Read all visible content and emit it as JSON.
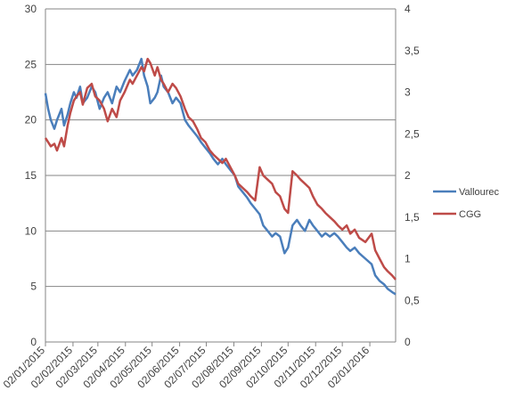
{
  "colors": {
    "vallourec": "#4a7ebb",
    "cgg": "#be4b48",
    "grid": "#868686",
    "axis": "#868686"
  },
  "chart_data": {
    "type": "line",
    "x_type": "date",
    "x_range": [
      "2015-01-02",
      "2016-01-31"
    ],
    "x_tick_labels": [
      "02/01/2015",
      "02/02/2015",
      "02/03/2015",
      "02/04/2015",
      "02/05/2015",
      "02/06/2015",
      "02/07/2015",
      "02/08/2015",
      "02/09/2015",
      "02/10/2015",
      "02/11/2015",
      "02/12/2015",
      "02/01/2016"
    ],
    "x_ticks": [
      "2015-01-02",
      "2015-02-02",
      "2015-03-02",
      "2015-04-02",
      "2015-05-02",
      "2015-06-02",
      "2015-07-02",
      "2015-08-02",
      "2015-09-02",
      "2015-10-02",
      "2015-11-02",
      "2015-12-02",
      "2016-01-02"
    ],
    "y_left": {
      "min": 0,
      "max": 30,
      "ticks": [
        "0",
        "5",
        "10",
        "15",
        "20",
        "25",
        "30"
      ]
    },
    "y_right": {
      "min": 0,
      "max": 4,
      "ticks": [
        "0",
        "0,5",
        "1",
        "1,5",
        "2",
        "2,5",
        "3",
        "3,5",
        "4"
      ]
    },
    "grid": true,
    "legend_position": "right",
    "series": [
      {
        "name": "Vallourec",
        "axis": "left",
        "x": [
          "2015-01-02",
          "2015-01-05",
          "2015-01-08",
          "2015-01-12",
          "2015-01-15",
          "2015-01-20",
          "2015-01-23",
          "2015-01-27",
          "2015-01-30",
          "2015-02-03",
          "2015-02-06",
          "2015-02-10",
          "2015-02-13",
          "2015-02-18",
          "2015-02-23",
          "2015-02-27",
          "2015-03-04",
          "2015-03-09",
          "2015-03-13",
          "2015-03-18",
          "2015-03-23",
          "2015-03-27",
          "2015-04-01",
          "2015-04-07",
          "2015-04-10",
          "2015-04-15",
          "2015-04-20",
          "2015-04-23",
          "2015-04-27",
          "2015-04-30",
          "2015-05-05",
          "2015-05-08",
          "2015-05-12",
          "2015-05-15",
          "2015-05-20",
          "2015-05-25",
          "2015-05-29",
          "2015-06-03",
          "2015-06-08",
          "2015-06-12",
          "2015-06-17",
          "2015-06-22",
          "2015-06-26",
          "2015-07-01",
          "2015-07-06",
          "2015-07-10",
          "2015-07-15",
          "2015-07-20",
          "2015-07-24",
          "2015-07-29",
          "2015-08-03",
          "2015-08-07",
          "2015-08-12",
          "2015-08-17",
          "2015-08-21",
          "2015-08-26",
          "2015-08-31",
          "2015-09-04",
          "2015-09-09",
          "2015-09-14",
          "2015-09-18",
          "2015-09-23",
          "2015-09-28",
          "2015-10-02",
          "2015-10-07",
          "2015-10-12",
          "2015-10-16",
          "2015-10-21",
          "2015-10-26",
          "2015-10-30",
          "2015-11-04",
          "2015-11-09",
          "2015-11-13",
          "2015-11-18",
          "2015-11-23",
          "2015-11-27",
          "2015-12-02",
          "2015-12-07",
          "2015-12-11",
          "2015-12-16",
          "2015-12-21",
          "2015-12-28",
          "2016-01-04",
          "2016-01-08",
          "2016-01-13",
          "2016-01-18",
          "2016-01-22",
          "2016-01-27",
          "2016-01-31"
        ],
        "values": [
          22.4,
          21.0,
          20.0,
          19.2,
          20.0,
          21.0,
          19.5,
          20.5,
          21.5,
          22.5,
          22.0,
          23.0,
          21.5,
          22.0,
          23.0,
          22.5,
          21.0,
          22.0,
          22.5,
          21.5,
          23.0,
          22.5,
          23.5,
          24.5,
          24.0,
          24.5,
          25.5,
          24.0,
          23.0,
          21.5,
          22.0,
          22.5,
          24.0,
          23.0,
          22.5,
          21.5,
          22.0,
          21.5,
          20.0,
          19.5,
          19.0,
          18.5,
          18.0,
          17.5,
          17.0,
          16.5,
          16.0,
          16.5,
          16.0,
          15.5,
          15.0,
          14.0,
          13.5,
          13.0,
          12.5,
          12.0,
          11.5,
          10.5,
          10.0,
          9.5,
          9.8,
          9.5,
          8.0,
          8.5,
          10.5,
          11.0,
          10.5,
          10.0,
          11.0,
          10.5,
          10.0,
          9.5,
          9.8,
          9.5,
          9.8,
          9.5,
          9.0,
          8.5,
          8.2,
          8.5,
          8.0,
          7.5,
          7.0,
          6.0,
          5.5,
          5.2,
          4.8,
          4.5,
          4.3
        ]
      },
      {
        "name": "CGG",
        "axis": "right",
        "x": [
          "2015-01-02",
          "2015-01-05",
          "2015-01-08",
          "2015-01-12",
          "2015-01-15",
          "2015-01-20",
          "2015-01-23",
          "2015-01-27",
          "2015-01-30",
          "2015-02-03",
          "2015-02-06",
          "2015-02-10",
          "2015-02-13",
          "2015-02-18",
          "2015-02-23",
          "2015-02-27",
          "2015-03-04",
          "2015-03-09",
          "2015-03-13",
          "2015-03-18",
          "2015-03-23",
          "2015-03-27",
          "2015-04-01",
          "2015-04-07",
          "2015-04-10",
          "2015-04-15",
          "2015-04-20",
          "2015-04-23",
          "2015-04-27",
          "2015-04-30",
          "2015-05-05",
          "2015-05-08",
          "2015-05-12",
          "2015-05-15",
          "2015-05-20",
          "2015-05-25",
          "2015-05-29",
          "2015-06-03",
          "2015-06-08",
          "2015-06-12",
          "2015-06-17",
          "2015-06-22",
          "2015-06-26",
          "2015-07-01",
          "2015-07-06",
          "2015-07-10",
          "2015-07-15",
          "2015-07-20",
          "2015-07-24",
          "2015-07-29",
          "2015-08-03",
          "2015-08-07",
          "2015-08-12",
          "2015-08-17",
          "2015-08-21",
          "2015-08-26",
          "2015-08-31",
          "2015-09-04",
          "2015-09-09",
          "2015-09-14",
          "2015-09-18",
          "2015-09-23",
          "2015-09-28",
          "2015-10-02",
          "2015-10-07",
          "2015-10-12",
          "2015-10-16",
          "2015-10-21",
          "2015-10-26",
          "2015-10-30",
          "2015-11-04",
          "2015-11-09",
          "2015-11-13",
          "2015-11-18",
          "2015-11-23",
          "2015-11-27",
          "2015-12-02",
          "2015-12-07",
          "2015-12-11",
          "2015-12-16",
          "2015-12-21",
          "2015-12-28",
          "2016-01-04",
          "2016-01-08",
          "2016-01-13",
          "2016-01-18",
          "2016-01-22",
          "2016-01-27",
          "2016-01-31"
        ],
        "values": [
          2.45,
          2.4,
          2.35,
          2.38,
          2.3,
          2.45,
          2.35,
          2.6,
          2.75,
          2.9,
          2.95,
          3.0,
          2.85,
          3.05,
          3.1,
          2.95,
          2.9,
          2.8,
          2.65,
          2.8,
          2.7,
          2.9,
          3.0,
          3.15,
          3.1,
          3.2,
          3.3,
          3.25,
          3.4,
          3.35,
          3.2,
          3.3,
          3.15,
          3.1,
          3.0,
          3.1,
          3.05,
          2.95,
          2.8,
          2.7,
          2.65,
          2.55,
          2.45,
          2.4,
          2.3,
          2.25,
          2.2,
          2.15,
          2.2,
          2.1,
          2.0,
          1.9,
          1.85,
          1.8,
          1.75,
          1.7,
          2.1,
          2.0,
          1.95,
          1.9,
          1.8,
          1.75,
          1.6,
          1.55,
          2.05,
          2.0,
          1.95,
          1.9,
          1.85,
          1.75,
          1.65,
          1.6,
          1.55,
          1.5,
          1.45,
          1.4,
          1.35,
          1.4,
          1.3,
          1.35,
          1.25,
          1.2,
          1.3,
          1.1,
          1.0,
          0.9,
          0.85,
          0.8,
          0.75
        ]
      }
    ]
  }
}
